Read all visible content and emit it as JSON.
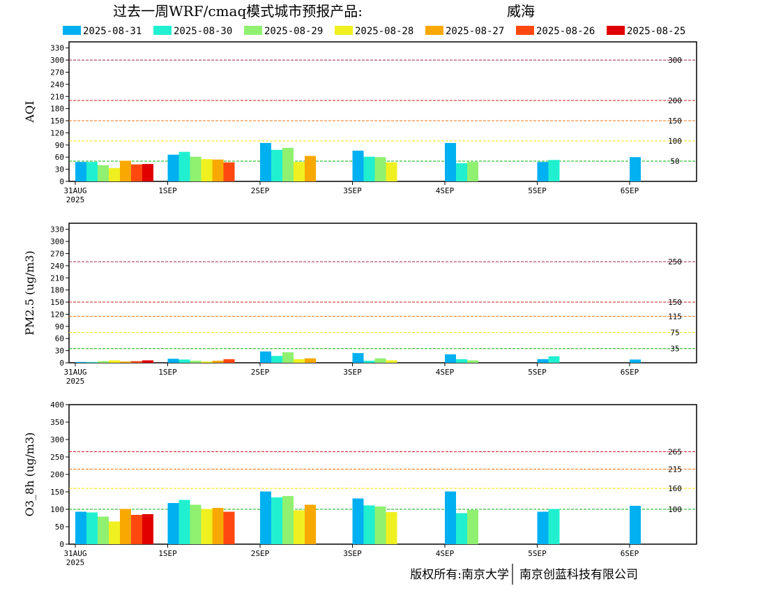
{
  "title": {
    "main": "过去一周WRF/cmaq模式城市预报产品:",
    "city": "威海",
    "city_color": "#e03030"
  },
  "copyright": {
    "left": "版权所有:南京大学",
    "right": "南京创蓝科技有限公司"
  },
  "series_names": [
    "2025-08-31",
    "2025-08-30",
    "2025-08-29",
    "2025-08-28",
    "2025-08-27",
    "2025-08-26",
    "2025-08-25"
  ],
  "series_colors": [
    "#00b0f0",
    "#20f0d0",
    "#90f070",
    "#f0f020",
    "#f8a800",
    "#ff4810",
    "#e00000"
  ],
  "chart_data": [
    {
      "type": "bar",
      "ylabel": "AQI",
      "categories": [
        "31AUG",
        "1SEP",
        "2SEP",
        "3SEP",
        "4SEP",
        "5SEP",
        "6SEP"
      ],
      "year_label": "2025",
      "ylim": [
        0,
        345
      ],
      "yticks": [
        0,
        30,
        60,
        90,
        120,
        150,
        180,
        210,
        240,
        270,
        300,
        330
      ],
      "thresholds": [
        {
          "value": 300,
          "label": "300",
          "color": "#a0204a"
        },
        {
          "value": 200,
          "label": "200",
          "color": "#d01818"
        },
        {
          "value": 150,
          "label": "150",
          "color": "#f07010"
        },
        {
          "value": 100,
          "label": "100",
          "color": "#f0e000"
        },
        {
          "value": 50,
          "label": "50",
          "color": "#00b000"
        }
      ],
      "series": [
        {
          "name": "2025-08-31",
          "values": [
            48,
            66,
            95,
            76,
            95,
            48,
            60
          ]
        },
        {
          "name": "2025-08-30",
          "values": [
            48,
            73,
            78,
            61,
            45,
            53,
            null
          ]
        },
        {
          "name": "2025-08-29",
          "values": [
            40,
            61,
            83,
            60,
            48,
            null,
            null
          ]
        },
        {
          "name": "2025-08-28",
          "values": [
            33,
            55,
            48,
            47,
            null,
            null,
            null
          ]
        },
        {
          "name": "2025-08-27",
          "values": [
            51,
            54,
            63,
            null,
            null,
            null,
            null
          ]
        },
        {
          "name": "2025-08-26",
          "values": [
            42,
            47,
            null,
            null,
            null,
            null,
            null
          ]
        },
        {
          "name": "2025-08-25",
          "values": [
            43,
            null,
            null,
            null,
            null,
            null,
            null
          ]
        }
      ]
    },
    {
      "type": "bar",
      "ylabel": "PM2.5 (ug/m3)",
      "categories": [
        "31AUG",
        "1SEP",
        "2SEP",
        "3SEP",
        "4SEP",
        "5SEP",
        "6SEP"
      ],
      "year_label": "2025",
      "ylim": [
        0,
        345
      ],
      "yticks": [
        0,
        30,
        60,
        90,
        120,
        150,
        180,
        210,
        240,
        270,
        300,
        330
      ],
      "thresholds": [
        {
          "value": 250,
          "label": "250",
          "color": "#a0204a"
        },
        {
          "value": 150,
          "label": "150",
          "color": "#d01818"
        },
        {
          "value": 115,
          "label": "115",
          "color": "#f07010"
        },
        {
          "value": 75,
          "label": "75",
          "color": "#f0e000"
        },
        {
          "value": 35,
          "label": "35",
          "color": "#00b000"
        }
      ],
      "series": [
        {
          "name": "2025-08-31",
          "values": [
            2,
            10,
            28,
            24,
            21,
            9,
            8
          ]
        },
        {
          "name": "2025-08-30",
          "values": [
            2,
            8,
            17,
            5,
            9,
            16,
            null
          ]
        },
        {
          "name": "2025-08-29",
          "values": [
            4,
            5,
            26,
            11,
            6,
            null,
            null
          ]
        },
        {
          "name": "2025-08-28",
          "values": [
            6,
            3,
            9,
            6,
            null,
            null,
            null
          ]
        },
        {
          "name": "2025-08-27",
          "values": [
            3,
            5,
            11,
            null,
            null,
            null,
            null
          ]
        },
        {
          "name": "2025-08-26",
          "values": [
            4,
            9,
            null,
            null,
            null,
            null,
            null
          ]
        },
        {
          "name": "2025-08-25",
          "values": [
            6,
            null,
            null,
            null,
            null,
            null,
            null
          ]
        }
      ]
    },
    {
      "type": "bar",
      "ylabel": "O3_8h (ug/m3)",
      "categories": [
        "31AUG",
        "1SEP",
        "2SEP",
        "3SEP",
        "4SEP",
        "5SEP",
        "6SEP"
      ],
      "year_label": "2025",
      "ylim": [
        0,
        400
      ],
      "yticks": [
        0,
        50,
        100,
        150,
        200,
        250,
        300,
        350,
        400
      ],
      "thresholds": [
        {
          "value": 265,
          "label": "265",
          "color": "#d01818"
        },
        {
          "value": 215,
          "label": "215",
          "color": "#f07010"
        },
        {
          "value": 160,
          "label": "160",
          "color": "#f0e000"
        },
        {
          "value": 100,
          "label": "100",
          "color": "#00b000"
        }
      ],
      "series": [
        {
          "name": "2025-08-31",
          "values": [
            93,
            118,
            151,
            131,
            151,
            93,
            110
          ]
        },
        {
          "name": "2025-08-30",
          "values": [
            91,
            127,
            134,
            111,
            89,
            101,
            null
          ]
        },
        {
          "name": "2025-08-29",
          "values": [
            79,
            113,
            138,
            108,
            98,
            null,
            null
          ]
        },
        {
          "name": "2025-08-28",
          "values": [
            65,
            101,
            97,
            92,
            null,
            null,
            null
          ]
        },
        {
          "name": "2025-08-27",
          "values": [
            101,
            104,
            113,
            null,
            null,
            null,
            null
          ]
        },
        {
          "name": "2025-08-26",
          "values": [
            84,
            93,
            null,
            null,
            null,
            null,
            null
          ]
        },
        {
          "name": "2025-08-25",
          "values": [
            86,
            null,
            null,
            null,
            null,
            null,
            null
          ]
        }
      ]
    }
  ]
}
